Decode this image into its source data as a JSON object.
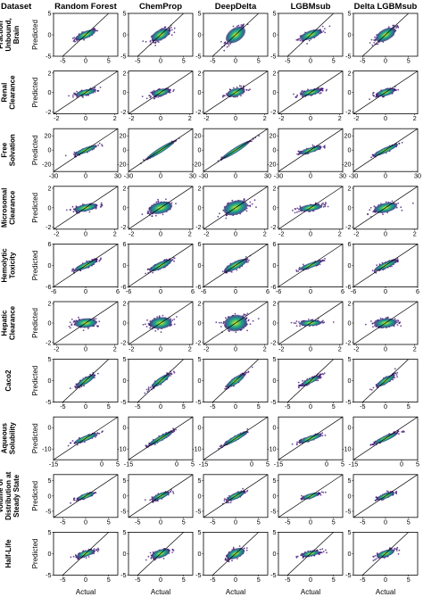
{
  "header": {
    "dataset_label": "Dataset",
    "models": [
      "Random Forest",
      "ChemProp",
      "DeepDelta",
      "LGBMsub",
      "Delta LGBMsub"
    ]
  },
  "axis_labels": {
    "x": "Actual",
    "y": "Predicted"
  },
  "colors": {
    "cloud_outer": "#3b0f70",
    "cloud_mid": "#21918c",
    "cloud_core": "#fde725",
    "frame": "#000000",
    "identity_line": "#000000"
  },
  "chart_data": {
    "type": "scatter",
    "description_kind": "density-colored scatter of predicted vs actual values with identity line",
    "rows": [
      {
        "dataset_lines": [
          "Fraction",
          "Unbound,",
          "Brain"
        ],
        "ylim": [
          -5,
          5
        ],
        "yticks": [
          "5",
          "0",
          "-5"
        ],
        "xlim": [
          -7,
          7
        ],
        "xticks": [
          "-5",
          "0",
          "5"
        ],
        "spread": [
          [
            2.2,
            0.7
          ],
          [
            2.0,
            1.0
          ],
          [
            2.0,
            1.3
          ],
          [
            2.4,
            0.8
          ],
          [
            2.1,
            1.1
          ]
        ],
        "slope": [
          0.45,
          0.55,
          0.75,
          0.4,
          0.6
        ]
      },
      {
        "dataset_lines": [
          "Renal",
          "Clearance"
        ],
        "ylim": [
          -2.2,
          2.2
        ],
        "yticks": [
          "2",
          "0",
          "-2"
        ],
        "xlim": [
          -2.2,
          2.2
        ],
        "xticks": [
          "-2",
          "0",
          "2"
        ],
        "spread": [
          [
            0.7,
            0.25
          ],
          [
            0.6,
            0.3
          ],
          [
            0.6,
            0.35
          ],
          [
            0.7,
            0.25
          ],
          [
            0.6,
            0.3
          ]
        ],
        "slope": [
          0.35,
          0.35,
          0.4,
          0.3,
          0.4
        ]
      },
      {
        "dataset_lines": [
          "Free",
          "Solvation"
        ],
        "ylim": [
          -30,
          30
        ],
        "yticks": [
          "20",
          "0",
          "-20"
        ],
        "xlim": [
          -30,
          30
        ],
        "xticks": [
          "-30",
          "0",
          "30"
        ],
        "spread": [
          [
            10,
            3
          ],
          [
            12,
            1.5
          ],
          [
            12,
            1.2
          ],
          [
            10,
            3
          ],
          [
            11,
            2.5
          ]
        ],
        "slope": [
          0.6,
          0.95,
          0.95,
          0.45,
          0.7
        ]
      },
      {
        "dataset_lines": [
          "Microsomal",
          "Clearance"
        ],
        "ylim": [
          -2.2,
          2.2
        ],
        "yticks": [
          "2",
          "0",
          "-2"
        ],
        "xlim": [
          -2.2,
          2.2
        ],
        "xticks": [
          "-2",
          "0",
          "2"
        ],
        "spread": [
          [
            0.8,
            0.3
          ],
          [
            0.8,
            0.5
          ],
          [
            0.8,
            0.6
          ],
          [
            0.8,
            0.28
          ],
          [
            0.8,
            0.4
          ]
        ],
        "slope": [
          0.3,
          0.35,
          0.45,
          0.2,
          0.35
        ]
      },
      {
        "dataset_lines": [
          "Hemolytic",
          "Toxicity"
        ],
        "ylim": [
          -6,
          6
        ],
        "yticks": [
          "6",
          "0",
          "-6"
        ],
        "xlim": [
          -6,
          6
        ],
        "xticks": [
          "-6",
          "0",
          "6"
        ],
        "spread": [
          [
            2.0,
            0.7
          ],
          [
            2.0,
            0.8
          ],
          [
            2.0,
            0.9
          ],
          [
            2.0,
            0.6
          ],
          [
            2.0,
            0.7
          ]
        ],
        "slope": [
          0.65,
          0.7,
          0.75,
          0.55,
          0.65
        ]
      },
      {
        "dataset_lines": [
          "Hepatic",
          "Clearance"
        ],
        "ylim": [
          -2.2,
          2.2
        ],
        "yticks": [
          "2",
          "0",
          "-2"
        ],
        "xlim": [
          -2.2,
          2.2
        ],
        "xticks": [
          "-2",
          "0",
          "2"
        ],
        "spread": [
          [
            0.8,
            0.4
          ],
          [
            0.8,
            0.5
          ],
          [
            0.8,
            0.7
          ],
          [
            0.8,
            0.25
          ],
          [
            0.8,
            0.4
          ]
        ],
        "slope": [
          0.1,
          0.15,
          0.2,
          0.05,
          0.15
        ]
      },
      {
        "dataset_lines": [
          "Caco2"
        ],
        "ylim": [
          -5,
          5
        ],
        "yticks": [
          "5",
          "0",
          "-5"
        ],
        "xlim": [
          -7,
          7
        ],
        "xticks": [
          "-5",
          "0",
          "5"
        ],
        "spread": [
          [
            2.0,
            0.6
          ],
          [
            2.0,
            0.6
          ],
          [
            2.0,
            0.65
          ],
          [
            2.0,
            0.5
          ],
          [
            2.0,
            0.6
          ]
        ],
        "slope": [
          0.65,
          0.75,
          0.75,
          0.5,
          0.65
        ]
      },
      {
        "dataset_lines": [
          "Aqueous",
          "Solubility"
        ],
        "ylim": [
          -15,
          5
        ],
        "yticks": [
          "0",
          "-10"
        ],
        "xlim": [
          -15,
          5
        ],
        "xticks": [
          "-15",
          "0",
          "5"
        ],
        "spread": [
          [
            3.5,
            1.0
          ],
          [
            3.5,
            1.0
          ],
          [
            3.5,
            0.9
          ],
          [
            3.5,
            0.9
          ],
          [
            3.5,
            1.0
          ]
        ],
        "slope": [
          0.6,
          0.85,
          0.85,
          0.5,
          0.65
        ]
      },
      {
        "dataset_lines": [
          "Volume of",
          "Distribution at",
          "Steady State"
        ],
        "ylim": [
          -7,
          7
        ],
        "yticks": [
          "5",
          "0",
          "-5"
        ],
        "xlim": [
          -7,
          7
        ],
        "xticks": [
          "-5",
          "0",
          "5"
        ],
        "spread": [
          [
            1.8,
            0.6
          ],
          [
            1.8,
            0.8
          ],
          [
            1.8,
            0.85
          ],
          [
            1.8,
            0.5
          ],
          [
            1.8,
            0.7
          ]
        ],
        "slope": [
          0.55,
          0.65,
          0.7,
          0.45,
          0.6
        ]
      },
      {
        "dataset_lines": [
          "Half-Life"
        ],
        "ylim": [
          -5,
          5
        ],
        "yticks": [
          "5",
          "0",
          "-5"
        ],
        "xlim": [
          -7,
          7
        ],
        "xticks": [
          "-5",
          "0",
          "5"
        ],
        "spread": [
          [
            2.0,
            0.6
          ],
          [
            2.0,
            0.8
          ],
          [
            2.0,
            0.9
          ],
          [
            2.0,
            0.5
          ],
          [
            2.0,
            0.65
          ]
        ],
        "slope": [
          0.35,
          0.35,
          0.45,
          0.2,
          0.35
        ]
      }
    ]
  }
}
